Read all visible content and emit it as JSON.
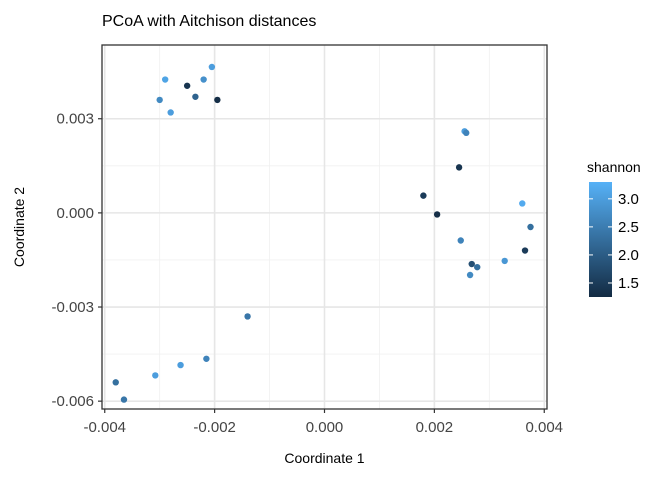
{
  "chart_data": {
    "type": "scatter",
    "title": "PCoA with Aitchison distances",
    "xlabel": "Coordinate 1",
    "ylabel": "Coordinate 2",
    "xlim": [
      -0.00405,
      0.00405
    ],
    "ylim": [
      -0.00625,
      0.00535
    ],
    "x_ticks": [
      -0.004,
      -0.002,
      0.0,
      0.002,
      0.004
    ],
    "x_tick_labels": [
      "-0.004",
      "-0.002",
      "0.000",
      "0.002",
      "0.004"
    ],
    "y_ticks": [
      -0.006,
      -0.003,
      0.0,
      0.003
    ],
    "y_tick_labels": [
      "-0.006",
      "-0.003",
      "0.000",
      "0.003"
    ],
    "grid": true,
    "legend": {
      "title": "shannon",
      "placement": "right",
      "min": 1.25,
      "max": 3.3,
      "ticks": [
        1.5,
        2.0,
        2.5,
        3.0
      ],
      "tick_labels": [
        "1.5",
        "2.0",
        "2.5",
        "3.0"
      ],
      "color_low": "#132B43",
      "color_high": "#56B1F7"
    },
    "points": [
      {
        "x": -0.0029,
        "y": 0.00425,
        "shannon": 3.1
      },
      {
        "x": -0.00205,
        "y": 0.00465,
        "shannon": 3.0
      },
      {
        "x": -0.0022,
        "y": 0.00425,
        "shannon": 2.8
      },
      {
        "x": -0.0025,
        "y": 0.00405,
        "shannon": 1.4
      },
      {
        "x": -0.003,
        "y": 0.0036,
        "shannon": 2.7
      },
      {
        "x": -0.00235,
        "y": 0.0037,
        "shannon": 2.1
      },
      {
        "x": -0.0028,
        "y": 0.0032,
        "shannon": 3.0
      },
      {
        "x": -0.00195,
        "y": 0.0036,
        "shannon": 1.3
      },
      {
        "x": 0.00255,
        "y": 0.0026,
        "shannon": 3.0
      },
      {
        "x": 0.00258,
        "y": 0.00255,
        "shannon": 2.6
      },
      {
        "x": 0.00245,
        "y": 0.00145,
        "shannon": 1.4
      },
      {
        "x": 0.0018,
        "y": 0.00055,
        "shannon": 1.5
      },
      {
        "x": 0.0036,
        "y": 0.0003,
        "shannon": 3.2
      },
      {
        "x": 0.00205,
        "y": -5e-05,
        "shannon": 1.3
      },
      {
        "x": 0.00375,
        "y": -0.00045,
        "shannon": 2.3
      },
      {
        "x": 0.00248,
        "y": -0.00088,
        "shannon": 2.6
      },
      {
        "x": 0.00365,
        "y": -0.0012,
        "shannon": 1.5
      },
      {
        "x": 0.00268,
        "y": -0.00163,
        "shannon": 1.8
      },
      {
        "x": 0.00278,
        "y": -0.00173,
        "shannon": 2.3
      },
      {
        "x": 0.00328,
        "y": -0.00153,
        "shannon": 2.9
      },
      {
        "x": 0.00265,
        "y": -0.00198,
        "shannon": 2.7
      },
      {
        "x": -0.0014,
        "y": -0.0033,
        "shannon": 2.4
      },
      {
        "x": -0.00215,
        "y": -0.00465,
        "shannon": 2.6
      },
      {
        "x": -0.00262,
        "y": -0.00485,
        "shannon": 3.0
      },
      {
        "x": -0.00308,
        "y": -0.00518,
        "shannon": 3.0
      },
      {
        "x": -0.0038,
        "y": -0.0054,
        "shannon": 2.3
      },
      {
        "x": -0.00365,
        "y": -0.00595,
        "shannon": 2.4
      }
    ]
  }
}
